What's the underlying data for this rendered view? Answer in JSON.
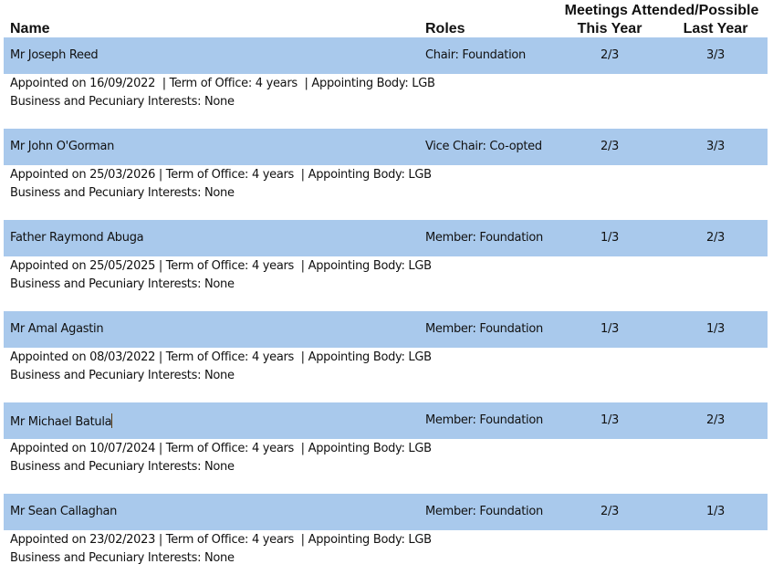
{
  "header": {
    "name": "Name",
    "roles": "Roles",
    "meetings": "Meetings Attended/Possible",
    "this_year": "This Year",
    "last_year": "Last Year"
  },
  "colors": {
    "row_band": "#a9c9ec"
  },
  "members": [
    {
      "name": "Mr Joseph Reed",
      "role": "Chair: Foundation",
      "this_year": "2/3",
      "last_year": "3/3",
      "details": "Appointed on 16/09/2022  | Term of Office: 4 years  | Appointing Body: LGB",
      "interests": "Business and Pecuniary Interests: None"
    },
    {
      "name": "Mr John O'Gorman",
      "role": "Vice Chair: Co-opted",
      "this_year": "2/3",
      "last_year": "3/3",
      "details": "Appointed on 25/03/2026 | Term of Office: 4 years  | Appointing Body: LGB",
      "interests": "Business and Pecuniary Interests: None"
    },
    {
      "name": "Father Raymond Abuga",
      "role": "Member: Foundation",
      "this_year": "1/3",
      "last_year": "2/3",
      "details": "Appointed on 25/05/2025 | Term of Office: 4 years  | Appointing Body: LGB",
      "interests": "Business and Pecuniary Interests: None"
    },
    {
      "name": "Mr Amal Agastin",
      "role": "Member: Foundation",
      "this_year": "1/3",
      "last_year": "1/3",
      "details": "Appointed on 08/03/2022 | Term of Office: 4 years  | Appointing Body: LGB",
      "interests": "Business and Pecuniary Interests: None"
    },
    {
      "name": "Mr Michael Batula",
      "role": "Member: Foundation",
      "this_year": "1/3",
      "last_year": "2/3",
      "details": "Appointed on 10/07/2024 | Term of Office: 4 years  | Appointing Body: LGB",
      "interests": "Business and Pecuniary Interests: None"
    },
    {
      "name": "Mr Sean Callaghan",
      "role": "Member: Foundation",
      "this_year": "2/3",
      "last_year": "1/3",
      "details": "Appointed on 23/02/2023 | Term of Office: 4 years  | Appointing Body: LGB",
      "interests": "Business and Pecuniary Interests: None"
    }
  ]
}
